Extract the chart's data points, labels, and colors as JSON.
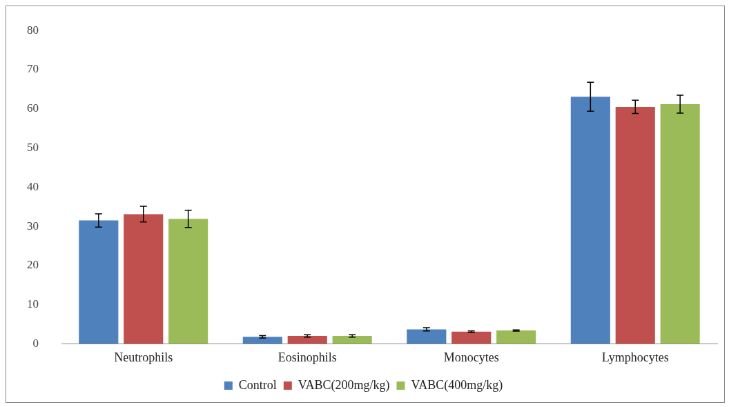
{
  "chart_data": {
    "type": "bar",
    "categories": [
      "Neutrophils",
      "Eosinophils",
      "Monocytes",
      "Lymphocytes"
    ],
    "series": [
      {
        "name": "Control",
        "color": "#4f81bd",
        "values": [
          31.5,
          1.8,
          3.7,
          63.1
        ],
        "errors": [
          1.7,
          0.3,
          0.4,
          3.7
        ]
      },
      {
        "name": "VABC(200mg/kg)",
        "color": "#c0504d",
        "values": [
          33.1,
          2.0,
          3.1,
          60.5
        ],
        "errors": [
          2.0,
          0.3,
          0.2,
          1.7
        ]
      },
      {
        "name": "VABC(400mg/kg)",
        "color": "#9bbb59",
        "values": [
          31.9,
          2.0,
          3.4,
          61.2
        ],
        "errors": [
          2.2,
          0.3,
          0.15,
          2.3
        ]
      }
    ],
    "ylim": [
      0,
      80
    ],
    "yticks": [
      0,
      10,
      20,
      30,
      40,
      50,
      60,
      70,
      80
    ],
    "grid": false,
    "legend": "bottom"
  }
}
